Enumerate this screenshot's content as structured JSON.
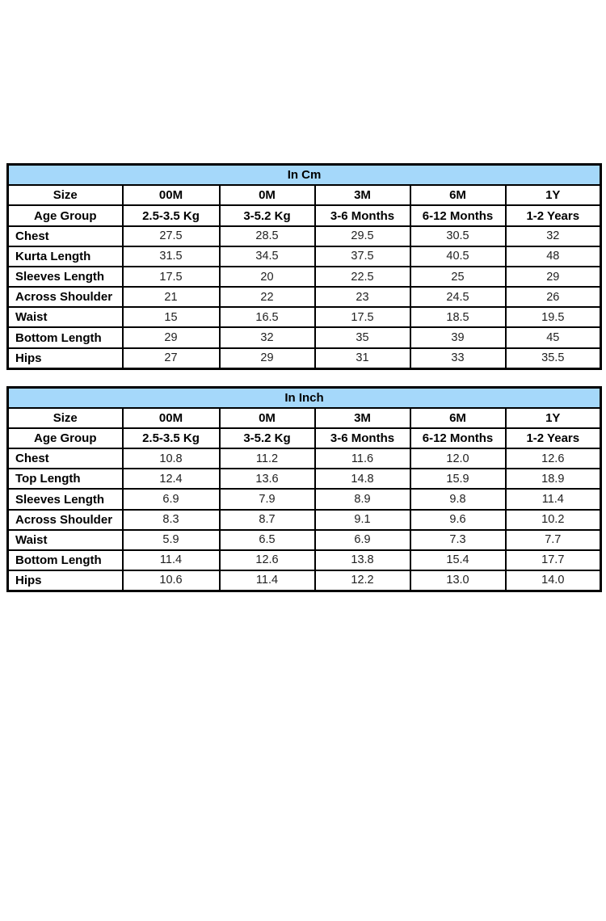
{
  "colors": {
    "title_fill": "#A5D8FA",
    "border": "#000000",
    "value_text": "#212121"
  },
  "tables": [
    {
      "title": "In Cm",
      "size_label": "Size",
      "age_group_label": "Age Group",
      "sizes": [
        "00M",
        "0M",
        "3M",
        "6M",
        "1Y"
      ],
      "age_groups": [
        "2.5-3.5 Kg",
        "3-5.2 Kg",
        "3-6 Months",
        "6-12 Months",
        "1-2 Years"
      ],
      "rows": [
        {
          "label": "Chest",
          "values": [
            "27.5",
            "28.5",
            "29.5",
            "30.5",
            "32"
          ]
        },
        {
          "label": "Kurta Length",
          "values": [
            "31.5",
            "34.5",
            "37.5",
            "40.5",
            "48"
          ]
        },
        {
          "label": "Sleeves Length",
          "values": [
            "17.5",
            "20",
            "22.5",
            "25",
            "29"
          ]
        },
        {
          "label": "Across Shoulder",
          "values": [
            "21",
            "22",
            "23",
            "24.5",
            "26"
          ]
        },
        {
          "label": "Waist",
          "values": [
            "15",
            "16.5",
            "17.5",
            "18.5",
            "19.5"
          ]
        },
        {
          "label": "Bottom Length",
          "values": [
            "29",
            "32",
            "35",
            "39",
            "45"
          ]
        },
        {
          "label": "Hips",
          "values": [
            "27",
            "29",
            "31",
            "33",
            "35.5"
          ]
        }
      ]
    },
    {
      "title": "In Inch",
      "size_label": "Size",
      "age_group_label": "Age Group",
      "sizes": [
        "00M",
        "0M",
        "3M",
        "6M",
        "1Y"
      ],
      "age_groups": [
        "2.5-3.5 Kg",
        "3-5.2 Kg",
        "3-6 Months",
        "6-12 Months",
        "1-2 Years"
      ],
      "rows": [
        {
          "label": "Chest",
          "values": [
            "10.8",
            "11.2",
            "11.6",
            "12.0",
            "12.6"
          ]
        },
        {
          "label": "Top Length",
          "values": [
            "12.4",
            "13.6",
            "14.8",
            "15.9",
            "18.9"
          ]
        },
        {
          "label": "Sleeves Length",
          "values": [
            "6.9",
            "7.9",
            "8.9",
            "9.8",
            "11.4"
          ]
        },
        {
          "label": "Across Shoulder",
          "values": [
            "8.3",
            "8.7",
            "9.1",
            "9.6",
            "10.2"
          ]
        },
        {
          "label": "Waist",
          "values": [
            "5.9",
            "6.5",
            "6.9",
            "7.3",
            "7.7"
          ]
        },
        {
          "label": "Bottom Length",
          "values": [
            "11.4",
            "12.6",
            "13.8",
            "15.4",
            "17.7"
          ]
        },
        {
          "label": "Hips",
          "values": [
            "10.6",
            "11.4",
            "12.2",
            "13.0",
            "14.0"
          ]
        }
      ]
    }
  ]
}
